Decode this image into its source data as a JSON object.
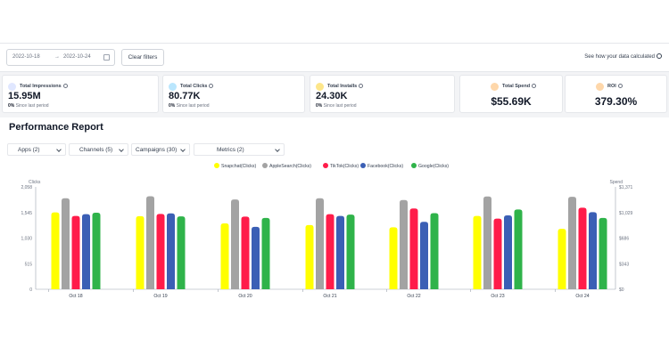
{
  "filters": {
    "date_start": "2022-10-18",
    "date_separator": "→",
    "date_end": "2022-10-24",
    "clear_label": "Clear filters",
    "data_link": "See how your data calculated"
  },
  "cards": [
    {
      "title": "Total Impressions",
      "value": "15.95M",
      "delta_pct": "0%",
      "delta_text": "Since last period",
      "icon": "eye-icon",
      "icon_color": "#e0e7ff"
    },
    {
      "title": "Total Clicks",
      "value": "80.77K",
      "delta_pct": "0%",
      "delta_text": "Since last period",
      "icon": "pointer-icon",
      "icon_color": "#bae6fd"
    },
    {
      "title": "Total Installs",
      "value": "24.30K",
      "delta_pct": "0%",
      "delta_text": "Since last period",
      "icon": "download-icon",
      "icon_color": "#fde68a"
    },
    {
      "title": "Total Spend",
      "value": "$55.69K",
      "icon": "dollar-icon",
      "icon_color": "#fed7aa"
    },
    {
      "title": "ROI",
      "value": "379.30%",
      "icon": "roi-icon",
      "icon_color": "#fed7aa"
    }
  ],
  "report": {
    "title": "Performance Report",
    "dropdowns": [
      "Apps (2)",
      "Channels (5)",
      "Campaigns (30)",
      "Metrics (2)"
    ]
  },
  "chart_data": {
    "type": "bar",
    "categories": [
      "Oct 18",
      "Oct 19",
      "Oct 20",
      "Oct 21",
      "Oct 22",
      "Oct 23",
      "Oct 24"
    ],
    "ylabel": "Clicks",
    "y2label": "Spend",
    "y_ticks": [
      "0",
      "515",
      "1,030",
      "1,545",
      "2,058"
    ],
    "y2_ticks": [
      "$0",
      "$343",
      "$686",
      "$1,029",
      "$1,371"
    ],
    "ylim": [
      0,
      2058
    ],
    "legend_position": "top-center",
    "series": [
      {
        "name": "Snapchat(Clicks)",
        "color": "#ffff00",
        "values": [
          1545,
          1470,
          1325,
          1290,
          1245,
          1475,
          1215
        ]
      },
      {
        "name": "AppleSearch(Clicks)",
        "color": "#a3a3a3",
        "values": [
          1830,
          1870,
          1805,
          1830,
          1795,
          1865,
          1860
        ]
      },
      {
        "name": "TikTok(Clicks)",
        "color": "#ff1c4a",
        "values": [
          1475,
          1515,
          1460,
          1510,
          1625,
          1420,
          1640
        ]
      },
      {
        "name": "Facebook(Clicks)",
        "color": "#3b5fb5",
        "values": [
          1510,
          1525,
          1255,
          1475,
          1355,
          1485,
          1550
        ]
      },
      {
        "name": "Google(Clicks)",
        "color": "#2fb34a",
        "values": [
          1540,
          1465,
          1435,
          1500,
          1530,
          1605,
          1435
        ]
      }
    ]
  }
}
